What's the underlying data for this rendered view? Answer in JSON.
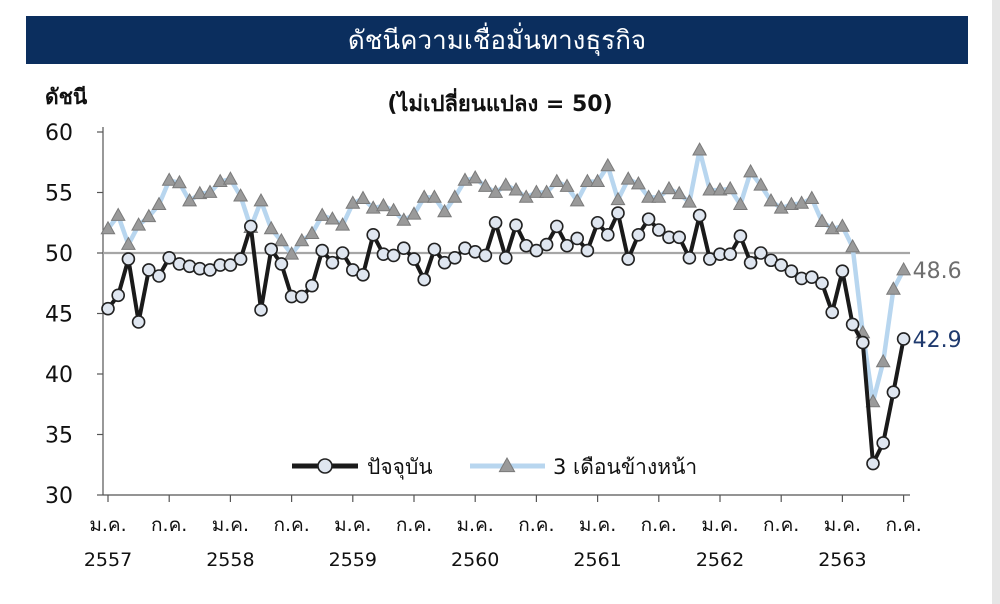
{
  "title": "ดัชนีความเชื่อมั่นทางธุรกิจ",
  "chart_data": {
    "type": "line",
    "title": "ดัชนีความเชื่อมั่นทางธุรกิจ",
    "subtitle": "(ไม่เปลี่ยนแปลง = 50)",
    "ylabel": "ดัชนี",
    "ylim": [
      30,
      60
    ],
    "yticks": [
      "30",
      "35",
      "40",
      "45",
      "50",
      "55",
      "60"
    ],
    "reference_line": 50,
    "month_labels": [
      "ม.ค.",
      "ก.ค.",
      "ม.ค.",
      "ก.ค.",
      "ม.ค.",
      "ก.ค.",
      "ม.ค.",
      "ก.ค.",
      "ม.ค.",
      "ก.ค.",
      "ม.ค.",
      "ก.ค.",
      "ม.ค.",
      "ก.ค."
    ],
    "year_labels": [
      "2557",
      "2558",
      "2559",
      "2560",
      "2561",
      "2562",
      "2563"
    ],
    "legend_position": "bottom-center",
    "series": [
      {
        "name": "ปัจจุบัน",
        "color": "#1a1a1a",
        "marker": "circle",
        "end_label": "42.9",
        "end_label_color": "#1f3a6e",
        "values": [
          45.4,
          46.5,
          49.5,
          44.3,
          48.6,
          48.1,
          49.6,
          49.1,
          48.9,
          48.7,
          48.6,
          49.0,
          49.0,
          49.5,
          52.2,
          45.3,
          50.3,
          49.1,
          46.4,
          46.4,
          47.3,
          50.2,
          49.2,
          50.0,
          48.6,
          48.2,
          51.5,
          49.9,
          49.8,
          50.4,
          49.5,
          47.8,
          50.3,
          49.2,
          49.6,
          50.4,
          50.1,
          49.8,
          52.5,
          49.6,
          52.3,
          50.6,
          50.2,
          50.7,
          52.2,
          50.6,
          51.2,
          50.2,
          52.5,
          51.5,
          53.3,
          49.5,
          51.5,
          52.8,
          51.9,
          51.3,
          51.3,
          49.6,
          53.1,
          49.5,
          49.9,
          49.9,
          51.4,
          49.2,
          50.0,
          49.4,
          49.0,
          48.5,
          47.9,
          48.0,
          47.5,
          45.1,
          48.5,
          44.1,
          42.6,
          32.6,
          34.3,
          38.5,
          42.9
        ]
      },
      {
        "name": "3 เดือนข้างหน้า",
        "color": "#b8d6ef",
        "marker": "triangle",
        "end_label": "48.6",
        "end_label_color": "#6e6e6e",
        "values": [
          52.0,
          53.1,
          50.7,
          52.3,
          53.0,
          54.0,
          56.0,
          55.8,
          54.3,
          54.9,
          55.0,
          55.9,
          56.1,
          54.7,
          52.1,
          54.3,
          52.0,
          51.0,
          49.9,
          51.0,
          51.6,
          53.1,
          52.8,
          52.3,
          54.1,
          54.5,
          53.7,
          53.9,
          53.5,
          52.7,
          53.2,
          54.6,
          54.6,
          53.4,
          54.6,
          56.0,
          56.2,
          55.5,
          55.0,
          55.6,
          55.2,
          54.6,
          55.0,
          55.0,
          55.9,
          55.5,
          54.3,
          55.9,
          55.9,
          57.2,
          54.4,
          56.1,
          55.7,
          54.6,
          54.6,
          55.3,
          54.9,
          54.2,
          58.5,
          55.2,
          55.2,
          55.3,
          54.0,
          56.7,
          55.6,
          54.3,
          53.7,
          54.0,
          54.1,
          54.5,
          52.6,
          52.0,
          52.2,
          50.5,
          43.4,
          37.7,
          41.0,
          47.0,
          48.6
        ]
      }
    ]
  }
}
